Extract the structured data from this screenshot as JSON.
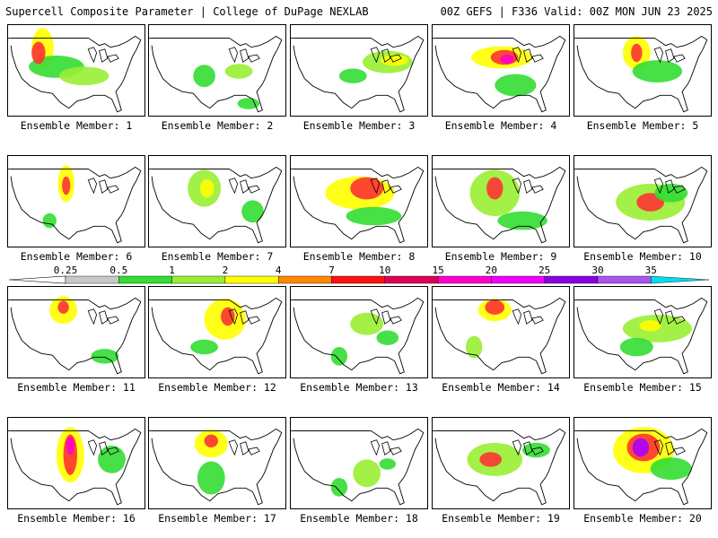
{
  "header": {
    "left_title": "Supercell Composite Parameter | College of DuPage NEXLAB",
    "right_title": "00Z GEFS | F336 Valid: 00Z MON JUN 23 2025"
  },
  "member_label_prefix": "Ensemble Member:",
  "members": [
    {
      "label": "Ensemble Member: 1",
      "blobs": [
        [
          0.25,
          0.25,
          0.08,
          0.22,
          "#ffff00"
        ],
        [
          0.35,
          0.45,
          0.2,
          0.12,
          "#33dd33"
        ],
        [
          0.22,
          0.3,
          0.05,
          0.12,
          "#ff3333"
        ],
        [
          0.55,
          0.55,
          0.18,
          0.1,
          "#99ee33"
        ]
      ]
    },
    {
      "label": "Ensemble Member: 2",
      "blobs": [
        [
          0.4,
          0.55,
          0.08,
          0.12,
          "#33dd33"
        ],
        [
          0.65,
          0.5,
          0.1,
          0.08,
          "#99ee33"
        ],
        [
          0.72,
          0.85,
          0.08,
          0.06,
          "#33dd33"
        ]
      ]
    },
    {
      "label": "Ensemble Member: 3",
      "blobs": [
        [
          0.7,
          0.4,
          0.18,
          0.12,
          "#99ee33"
        ],
        [
          0.75,
          0.38,
          0.1,
          0.06,
          "#ffff00"
        ],
        [
          0.45,
          0.55,
          0.1,
          0.08,
          "#33dd33"
        ]
      ]
    },
    {
      "label": "Ensemble Member: 4",
      "blobs": [
        [
          0.5,
          0.35,
          0.22,
          0.12,
          "#ffff00"
        ],
        [
          0.52,
          0.35,
          0.1,
          0.08,
          "#ff3333"
        ],
        [
          0.54,
          0.37,
          0.05,
          0.05,
          "#ff00cc"
        ],
        [
          0.6,
          0.65,
          0.15,
          0.12,
          "#33dd33"
        ]
      ]
    },
    {
      "label": "Ensemble Member: 5",
      "blobs": [
        [
          0.45,
          0.3,
          0.1,
          0.18,
          "#ffff00"
        ],
        [
          0.45,
          0.3,
          0.04,
          0.1,
          "#ff3333"
        ],
        [
          0.6,
          0.5,
          0.18,
          0.12,
          "#33dd33"
        ]
      ]
    },
    {
      "label": "Ensemble Member: 6",
      "blobs": [
        [
          0.42,
          0.3,
          0.06,
          0.2,
          "#ffff00"
        ],
        [
          0.42,
          0.32,
          0.03,
          0.1,
          "#ff3333"
        ],
        [
          0.3,
          0.7,
          0.05,
          0.08,
          "#33dd33"
        ]
      ]
    },
    {
      "label": "Ensemble Member: 7",
      "blobs": [
        [
          0.4,
          0.35,
          0.12,
          0.2,
          "#99ee33"
        ],
        [
          0.42,
          0.35,
          0.05,
          0.1,
          "#ffff00"
        ],
        [
          0.75,
          0.6,
          0.08,
          0.12,
          "#33dd33"
        ]
      ]
    },
    {
      "label": "Ensemble Member: 8",
      "blobs": [
        [
          0.5,
          0.4,
          0.25,
          0.18,
          "#ffff00"
        ],
        [
          0.55,
          0.35,
          0.12,
          0.12,
          "#ff3333"
        ],
        [
          0.6,
          0.65,
          0.2,
          0.1,
          "#33dd33"
        ]
      ]
    },
    {
      "label": "Ensemble Member: 9",
      "blobs": [
        [
          0.45,
          0.4,
          0.18,
          0.25,
          "#99ee33"
        ],
        [
          0.45,
          0.35,
          0.06,
          0.12,
          "#ff3333"
        ],
        [
          0.65,
          0.7,
          0.18,
          0.1,
          "#33dd33"
        ]
      ]
    },
    {
      "label": "Ensemble Member: 10",
      "blobs": [
        [
          0.55,
          0.5,
          0.25,
          0.2,
          "#99ee33"
        ],
        [
          0.55,
          0.5,
          0.1,
          0.1,
          "#ff3333"
        ],
        [
          0.7,
          0.4,
          0.12,
          0.1,
          "#33dd33"
        ]
      ]
    },
    {
      "label": "Ensemble Member: 11",
      "blobs": [
        [
          0.4,
          0.25,
          0.1,
          0.15,
          "#ffff00"
        ],
        [
          0.4,
          0.22,
          0.04,
          0.07,
          "#ff3333"
        ],
        [
          0.7,
          0.75,
          0.1,
          0.08,
          "#33dd33"
        ]
      ]
    },
    {
      "label": "Ensemble Member: 12",
      "blobs": [
        [
          0.55,
          0.35,
          0.15,
          0.22,
          "#ffff00"
        ],
        [
          0.57,
          0.32,
          0.05,
          0.1,
          "#ff3333"
        ],
        [
          0.4,
          0.65,
          0.1,
          0.08,
          "#33dd33"
        ]
      ]
    },
    {
      "label": "Ensemble Member: 13",
      "blobs": [
        [
          0.55,
          0.4,
          0.12,
          0.12,
          "#99ee33"
        ],
        [
          0.35,
          0.75,
          0.06,
          0.1,
          "#33dd33"
        ],
        [
          0.7,
          0.55,
          0.08,
          0.08,
          "#33dd33"
        ]
      ]
    },
    {
      "label": "Ensemble Member: 14",
      "blobs": [
        [
          0.45,
          0.25,
          0.12,
          0.12,
          "#ffff00"
        ],
        [
          0.45,
          0.22,
          0.07,
          0.08,
          "#ff3333"
        ],
        [
          0.3,
          0.65,
          0.06,
          0.12,
          "#99ee33"
        ]
      ]
    },
    {
      "label": "Ensemble Member: 15",
      "blobs": [
        [
          0.6,
          0.45,
          0.25,
          0.15,
          "#99ee33"
        ],
        [
          0.55,
          0.42,
          0.08,
          0.06,
          "#ffff00"
        ],
        [
          0.45,
          0.65,
          0.12,
          0.1,
          "#33dd33"
        ]
      ]
    },
    {
      "label": "Ensemble Member: 16",
      "blobs": [
        [
          0.45,
          0.4,
          0.1,
          0.3,
          "#ffff00"
        ],
        [
          0.45,
          0.4,
          0.05,
          0.22,
          "#ff3333"
        ],
        [
          0.45,
          0.3,
          0.03,
          0.1,
          "#ff00cc"
        ],
        [
          0.75,
          0.45,
          0.1,
          0.15,
          "#33dd33"
        ]
      ]
    },
    {
      "label": "Ensemble Member: 17",
      "blobs": [
        [
          0.45,
          0.28,
          0.12,
          0.15,
          "#ffff00"
        ],
        [
          0.45,
          0.25,
          0.05,
          0.07,
          "#ff3333"
        ],
        [
          0.45,
          0.65,
          0.1,
          0.18,
          "#33dd33"
        ]
      ]
    },
    {
      "label": "Ensemble Member: 18",
      "blobs": [
        [
          0.55,
          0.6,
          0.1,
          0.15,
          "#99ee33"
        ],
        [
          0.35,
          0.75,
          0.06,
          0.1,
          "#33dd33"
        ],
        [
          0.7,
          0.5,
          0.06,
          0.06,
          "#33dd33"
        ]
      ]
    },
    {
      "label": "Ensemble Member: 19",
      "blobs": [
        [
          0.45,
          0.45,
          0.2,
          0.18,
          "#99ee33"
        ],
        [
          0.42,
          0.45,
          0.08,
          0.08,
          "#ff3333"
        ],
        [
          0.75,
          0.35,
          0.1,
          0.08,
          "#33dd33"
        ]
      ]
    },
    {
      "label": "Ensemble Member: 20",
      "blobs": [
        [
          0.5,
          0.35,
          0.22,
          0.25,
          "#ffff00"
        ],
        [
          0.5,
          0.32,
          0.12,
          0.15,
          "#ff3333"
        ],
        [
          0.48,
          0.32,
          0.06,
          0.1,
          "#aa00ff"
        ],
        [
          0.7,
          0.55,
          0.15,
          0.12,
          "#33dd33"
        ]
      ]
    }
  ],
  "colorbar": {
    "labels": [
      "0.25",
      "0.5",
      "1",
      "2",
      "4",
      "7",
      "10",
      "15",
      "20",
      "25",
      "30",
      "35"
    ],
    "colors": [
      "#c8c8c8",
      "#33dd33",
      "#99ee33",
      "#ffff00",
      "#ff8800",
      "#ff1111",
      "#dd0055",
      "#ff00cc",
      "#ee00ff",
      "#8800dd",
      "#aa55ee",
      "#00ddee"
    ]
  }
}
